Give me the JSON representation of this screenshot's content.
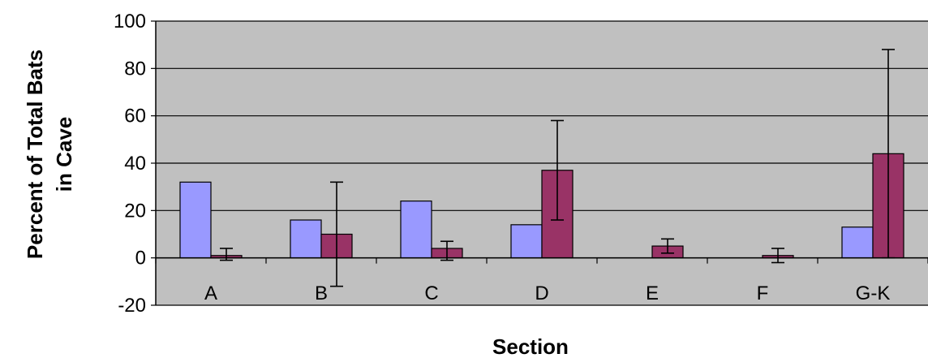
{
  "chart_data": {
    "type": "bar",
    "title": "",
    "xlabel": "Section",
    "ylabel_lines": [
      "Percent of Total Bats",
      "in Cave"
    ],
    "categories": [
      "A",
      "B",
      "C",
      "D",
      "E",
      "F",
      "G-K"
    ],
    "ylim": [
      -20,
      100
    ],
    "yticks": [
      -20,
      0,
      20,
      40,
      60,
      80,
      100
    ],
    "grid": true,
    "plot_background": "#c0c0c0",
    "series": [
      {
        "color": "#9999ff",
        "values": [
          32,
          16,
          24,
          14,
          0,
          0,
          13
        ],
        "error": [
          null,
          null,
          null,
          null,
          null,
          null,
          null
        ]
      },
      {
        "color": "#993366",
        "values": [
          1,
          10,
          4,
          37,
          5,
          1,
          44
        ],
        "error": [
          [
            -1,
            4
          ],
          [
            -12,
            32
          ],
          [
            -1,
            7
          ],
          [
            16,
            58
          ],
          [
            2,
            8
          ],
          [
            -2,
            4
          ],
          [
            0,
            88
          ]
        ]
      }
    ]
  }
}
